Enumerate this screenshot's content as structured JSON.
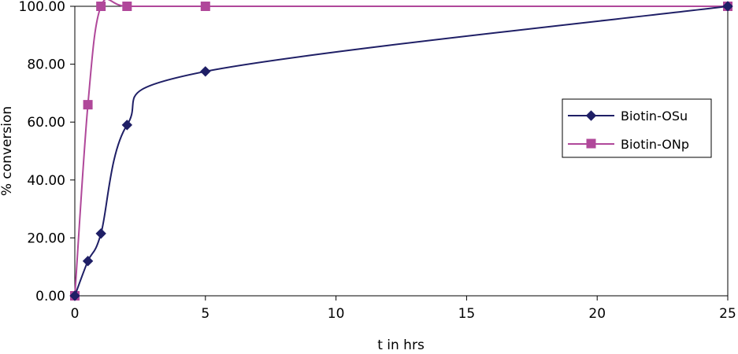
{
  "chart_data": {
    "type": "line",
    "title": "",
    "xlabel": "t in hrs",
    "ylabel": "% conversion",
    "xlim": [
      0,
      25
    ],
    "ylim": [
      0,
      100
    ],
    "x_ticks": [
      0,
      5,
      10,
      15,
      20,
      25
    ],
    "y_ticks": [
      0,
      20,
      40,
      60,
      80,
      100
    ],
    "x_tick_labels": [
      "0",
      "5",
      "10",
      "15",
      "20",
      "25"
    ],
    "y_tick_labels": [
      "0.00",
      "20.00",
      "40.00",
      "60.00",
      "80.00",
      "100.00"
    ],
    "grid": false,
    "legend_position": "right",
    "series": [
      {
        "name": "Biotin-OSu",
        "color": "#1f1f66",
        "marker": "diamond",
        "x": [
          0,
          0.5,
          1,
          2,
          5,
          25
        ],
        "y": [
          0,
          12,
          21.5,
          59,
          77.5,
          100
        ]
      },
      {
        "name": "Biotin-ONp",
        "color": "#b0489a",
        "marker": "square",
        "x": [
          0,
          0.5,
          1,
          2,
          5,
          25
        ],
        "y": [
          0,
          66,
          100,
          100,
          100,
          100
        ]
      }
    ]
  }
}
